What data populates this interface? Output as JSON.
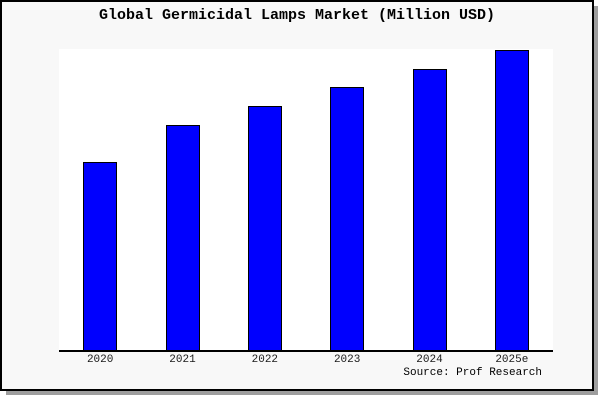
{
  "figure": {
    "background_color": "#f8f8f8",
    "plot_background_color": "#ffffff",
    "bar_fill_color": "#0000fe",
    "bar_border_color": "#000000",
    "axis_line_color": "#000000",
    "border_color": "#000000",
    "shadow_color": "#9e9e9e",
    "source_label": "Source: Prof Research"
  },
  "chart_data": {
    "type": "bar",
    "title": "Global Germicidal Lamps Market (Million USD)",
    "categories": [
      "2020",
      "2021",
      "2022",
      "2023",
      "2024",
      "2025e"
    ],
    "values": [
      62.5,
      74.8,
      81.1,
      87.4,
      93.4,
      99.7
    ],
    "value_note": "no y-axis scale shown; values are relative bar heights in % of plot height",
    "xlabel": "",
    "ylabel": "",
    "ylim": [
      0,
      100
    ],
    "grid": false,
    "legend": false,
    "y_axis_visible": false,
    "x_axis_visible": true,
    "source": "Source: Prof Research"
  }
}
